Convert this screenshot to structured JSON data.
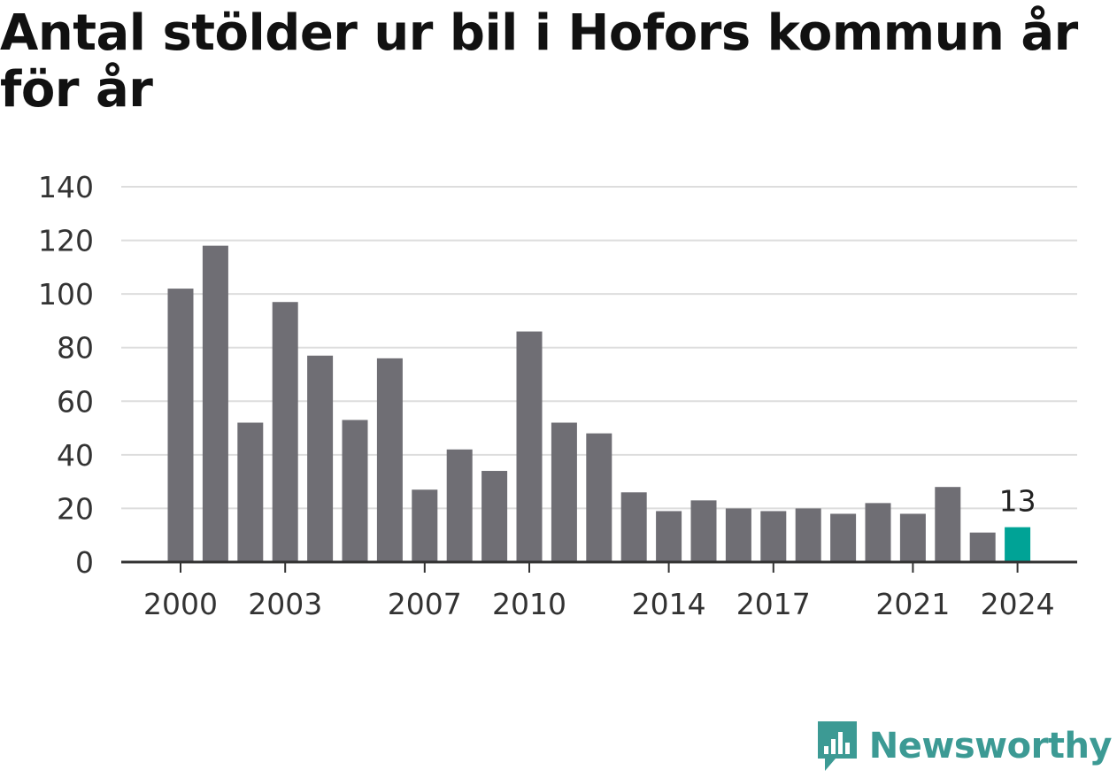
{
  "chart_data": {
    "type": "bar",
    "title": "Antal stölder ur bil i Hofors kommun år för år",
    "x": [
      2000,
      2001,
      2002,
      2003,
      2004,
      2005,
      2006,
      2007,
      2008,
      2009,
      2010,
      2011,
      2012,
      2013,
      2014,
      2015,
      2016,
      2017,
      2018,
      2019,
      2020,
      2021,
      2022,
      2023,
      2024
    ],
    "values": [
      102,
      118,
      52,
      97,
      77,
      53,
      76,
      27,
      42,
      34,
      86,
      52,
      48,
      26,
      19,
      23,
      20,
      19,
      20,
      18,
      22,
      18,
      28,
      11,
      13
    ],
    "x_tick_labels": [
      "2000",
      "2003",
      "2007",
      "2010",
      "2014",
      "2017",
      "2021",
      "2024"
    ],
    "y_ticks": [
      0,
      20,
      40,
      60,
      80,
      100,
      120,
      140
    ],
    "ylim": [
      0,
      140
    ],
    "highlight": {
      "x": 2024,
      "label": "13"
    },
    "grid": true,
    "xlabel": "",
    "ylabel": ""
  },
  "colors": {
    "bar": "#6f6e74",
    "highlight": "#00a396",
    "grid": "#dddddd",
    "axis": "#333333"
  },
  "logo": {
    "text": "Newsworthy",
    "icon": "newsworthy-chart-bubble-icon"
  }
}
